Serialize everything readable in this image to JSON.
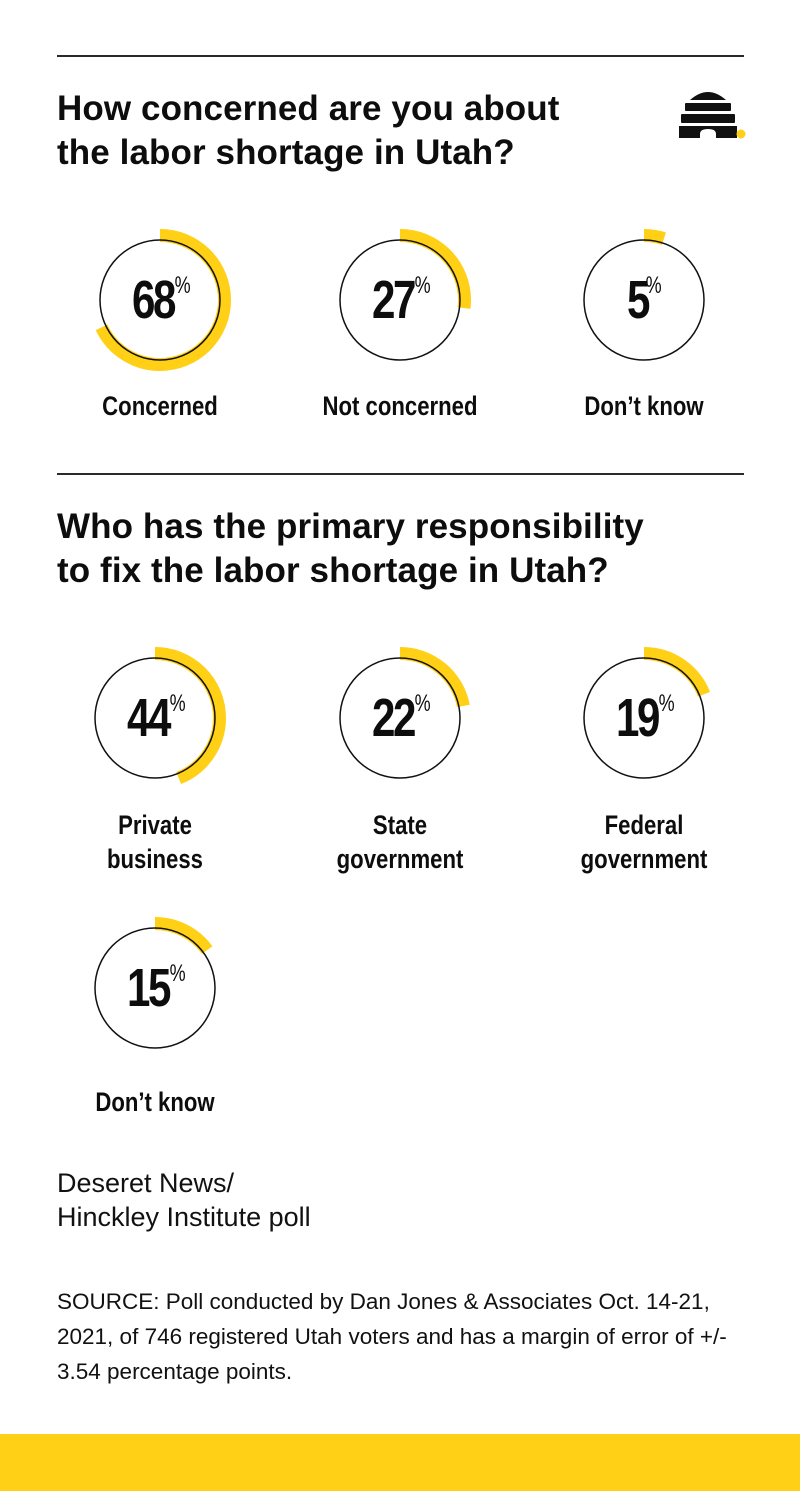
{
  "colors": {
    "accent": "#FFD015",
    "text": "#0d0d0d",
    "divider": "#2a2a2a"
  },
  "logo": {
    "icon": "beehive-logo-icon"
  },
  "section1": {
    "question_lines": [
      "How concerned are you about",
      "the labor shortage in Utah?"
    ],
    "items": [
      {
        "value": "68",
        "percent_sign": "%",
        "label_lines": [
          "Concerned"
        ]
      },
      {
        "value": "27",
        "percent_sign": "%",
        "label_lines": [
          "Not concerned"
        ]
      },
      {
        "value": "5",
        "percent_sign": "%",
        "label_lines": [
          "Don’t know"
        ]
      }
    ]
  },
  "section2": {
    "question_lines": [
      "Who has the primary responsibility",
      "to fix the labor shortage in Utah?"
    ],
    "items": [
      {
        "value": "44",
        "percent_sign": "%",
        "label_lines": [
          "Private",
          "business"
        ]
      },
      {
        "value": "22",
        "percent_sign": "%",
        "label_lines": [
          "State",
          "government"
        ]
      },
      {
        "value": "19",
        "percent_sign": "%",
        "label_lines": [
          "Federal",
          "government"
        ]
      },
      {
        "value": "15",
        "percent_sign": "%",
        "label_lines": [
          "Don’t know"
        ]
      }
    ]
  },
  "credit_lines": [
    "Deseret News/",
    "Hinckley Institute poll"
  ],
  "source": "SOURCE: Poll conducted by Dan Jones & Associates Oct. 14-21, 2021, of 746 registered Utah voters and has a margin of error of +/- 3.54 percentage points.",
  "chart_data": [
    {
      "type": "pie",
      "title": "How concerned are you about the labor shortage in Utah?",
      "categories": [
        "Concerned",
        "Not concerned",
        "Don’t know"
      ],
      "values": [
        68,
        27,
        5
      ],
      "unit": "%",
      "style": "individual donut progress rings, arc starts at 12 o'clock clockwise"
    },
    {
      "type": "pie",
      "title": "Who has the primary responsibility to fix the labor shortage in Utah?",
      "categories": [
        "Private business",
        "State government",
        "Federal government",
        "Don’t know"
      ],
      "values": [
        44,
        22,
        19,
        15
      ],
      "unit": "%",
      "style": "individual donut progress rings, arc starts at 12 o'clock clockwise"
    }
  ]
}
